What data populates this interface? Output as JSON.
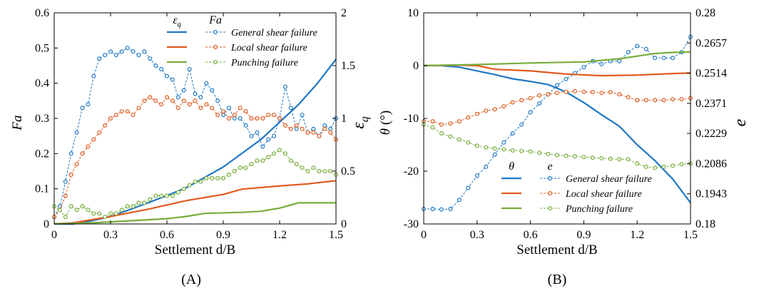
{
  "chart_data": [
    {
      "panel_label": "(A)",
      "type": "line",
      "xlabel": "Settlement d/B",
      "ylabel_left": "Fa",
      "ylabel_right": "ε_q",
      "xlim": [
        0,
        1.5
      ],
      "ylim_left": [
        0,
        0.6
      ],
      "ylim_right": [
        0,
        2
      ],
      "xticks": [
        "0",
        "0.3",
        "0.6",
        "0.9",
        "1.2",
        "1.5"
      ],
      "yticks_left": [
        "0",
        "0.1",
        "0.2",
        "0.3",
        "0.4",
        "0.5",
        "0.6"
      ],
      "yticks_right": [
        "0",
        "0.5",
        "1",
        "1.5",
        "2"
      ],
      "legend_headers": [
        "ε_q",
        "Fa"
      ],
      "legend_position": "top-right",
      "series": [
        {
          "name": "General shear failure",
          "color": "#1f77c4",
          "axis_solid": "right",
          "axis_marker": "left",
          "solid": {
            "x": [
              0,
              0.1,
              0.2,
              0.3,
              0.5,
              0.7,
              0.9,
              1.1,
              1.3,
              1.4,
              1.5
            ],
            "y": [
              0,
              0,
              0.03,
              0.07,
              0.2,
              0.34,
              0.54,
              0.8,
              1.13,
              1.33,
              1.56
            ]
          },
          "markers": {
            "x": [
              0,
              0.03,
              0.06,
              0.09,
              0.12,
              0.15,
              0.18,
              0.21,
              0.24,
              0.27,
              0.3,
              0.33,
              0.36,
              0.39,
              0.42,
              0.45,
              0.48,
              0.51,
              0.54,
              0.57,
              0.6,
              0.63,
              0.66,
              0.69,
              0.72,
              0.75,
              0.78,
              0.81,
              0.84,
              0.87,
              0.9,
              0.93,
              0.96,
              0.99,
              1.02,
              1.05,
              1.08,
              1.11,
              1.14,
              1.17,
              1.2,
              1.23,
              1.26,
              1.29,
              1.32,
              1.35,
              1.38,
              1.41,
              1.44,
              1.47,
              1.5
            ],
            "y": [
              0.02,
              0.05,
              0.12,
              0.2,
              0.26,
              0.33,
              0.34,
              0.42,
              0.47,
              0.48,
              0.49,
              0.48,
              0.49,
              0.5,
              0.49,
              0.48,
              0.49,
              0.47,
              0.45,
              0.44,
              0.42,
              0.41,
              0.36,
              0.38,
              0.44,
              0.37,
              0.36,
              0.4,
              0.38,
              0.35,
              0.31,
              0.33,
              0.3,
              0.3,
              0.28,
              0.25,
              0.26,
              0.22,
              0.24,
              0.25,
              0.3,
              0.39,
              0.33,
              0.27,
              0.31,
              0.26,
              0.27,
              0.25,
              0.28,
              0.27,
              0.3
            ]
          }
        },
        {
          "name": "Local shear failure",
          "color": "#e05a1e",
          "axis_solid": "right",
          "axis_marker": "left",
          "solid": {
            "x": [
              0,
              0.1,
              0.3,
              0.5,
              0.7,
              0.9,
              1.0,
              1.2,
              1.35,
              1.5
            ],
            "y": [
              0,
              0.01,
              0.07,
              0.14,
              0.22,
              0.28,
              0.33,
              0.36,
              0.38,
              0.41
            ]
          },
          "markers": {
            "x": [
              0,
              0.03,
              0.06,
              0.09,
              0.12,
              0.15,
              0.18,
              0.21,
              0.24,
              0.27,
              0.3,
              0.33,
              0.36,
              0.39,
              0.42,
              0.45,
              0.48,
              0.51,
              0.54,
              0.57,
              0.6,
              0.63,
              0.66,
              0.69,
              0.72,
              0.75,
              0.78,
              0.81,
              0.84,
              0.87,
              0.9,
              0.93,
              0.96,
              0.99,
              1.02,
              1.05,
              1.08,
              1.11,
              1.14,
              1.17,
              1.2,
              1.23,
              1.26,
              1.29,
              1.32,
              1.35,
              1.38,
              1.41,
              1.44,
              1.47,
              1.5
            ],
            "y": [
              0.02,
              0.04,
              0.08,
              0.14,
              0.17,
              0.2,
              0.22,
              0.24,
              0.26,
              0.28,
              0.3,
              0.31,
              0.32,
              0.32,
              0.31,
              0.33,
              0.35,
              0.36,
              0.35,
              0.34,
              0.36,
              0.35,
              0.33,
              0.35,
              0.34,
              0.35,
              0.33,
              0.34,
              0.33,
              0.31,
              0.32,
              0.3,
              0.31,
              0.33,
              0.32,
              0.3,
              0.3,
              0.3,
              0.31,
              0.31,
              0.3,
              0.28,
              0.27,
              0.28,
              0.27,
              0.26,
              0.26,
              0.25,
              0.27,
              0.26,
              0.24
            ]
          }
        },
        {
          "name": "Punching failure",
          "color": "#77ad3a",
          "axis_solid": "right",
          "axis_marker": "left",
          "solid": {
            "x": [
              0,
              0.2,
              0.4,
              0.6,
              0.7,
              0.8,
              1.0,
              1.1,
              1.2,
              1.3,
              1.4,
              1.5
            ],
            "y": [
              0,
              0.01,
              0.03,
              0.05,
              0.07,
              0.1,
              0.11,
              0.12,
              0.15,
              0.2,
              0.2,
              0.2
            ]
          },
          "markers": {
            "x": [
              0,
              0.03,
              0.06,
              0.09,
              0.12,
              0.15,
              0.18,
              0.21,
              0.24,
              0.27,
              0.3,
              0.33,
              0.36,
              0.39,
              0.42,
              0.45,
              0.48,
              0.51,
              0.54,
              0.57,
              0.6,
              0.63,
              0.66,
              0.69,
              0.72,
              0.75,
              0.78,
              0.81,
              0.84,
              0.87,
              0.9,
              0.93,
              0.96,
              0.99,
              1.02,
              1.05,
              1.08,
              1.11,
              1.14,
              1.17,
              1.2,
              1.23,
              1.26,
              1.29,
              1.32,
              1.35,
              1.38,
              1.41,
              1.44,
              1.47,
              1.5
            ],
            "y": [
              0.05,
              0.04,
              0.02,
              0.05,
              0.04,
              0.05,
              0.04,
              0.03,
              0.03,
              0.02,
              0.03,
              0.03,
              0.04,
              0.05,
              0.05,
              0.06,
              0.06,
              0.07,
              0.08,
              0.08,
              0.08,
              0.08,
              0.09,
              0.1,
              0.11,
              0.12,
              0.12,
              0.13,
              0.13,
              0.13,
              0.13,
              0.14,
              0.15,
              0.16,
              0.16,
              0.17,
              0.18,
              0.18,
              0.19,
              0.2,
              0.21,
              0.2,
              0.18,
              0.17,
              0.16,
              0.15,
              0.16,
              0.15,
              0.15,
              0.15,
              0.14
            ]
          }
        }
      ]
    },
    {
      "panel_label": "(B)",
      "type": "line",
      "xlabel": "Settlement d/B",
      "ylabel_left": "θ (°)",
      "ylabel_right": "e",
      "xlim": [
        0,
        1.5
      ],
      "ylim_left": [
        -30,
        10
      ],
      "ylim_right": [
        0.18,
        0.28
      ],
      "xticks": [
        "0",
        "0.3",
        "0.6",
        "0.9",
        "1.2",
        "1.5"
      ],
      "yticks_left": [
        "-30",
        "-20",
        "-10",
        "0",
        "10"
      ],
      "yticks_right": [
        "0.18",
        "0.1943",
        "0.2086",
        "0.2229",
        "0.2371",
        "0.2514",
        "0.2657",
        "0.28"
      ],
      "legend_headers": [
        "θ",
        "e"
      ],
      "legend_position": "bottom-right",
      "series": [
        {
          "name": "General shear failure",
          "color": "#1f77c4",
          "axis_solid": "left",
          "axis_marker": "right",
          "solid": {
            "x": [
              0,
              0.1,
              0.2,
              0.3,
              0.4,
              0.5,
              0.6,
              0.7,
              0.8,
              0.9,
              1.0,
              1.1,
              1.2,
              1.3,
              1.4,
              1.5
            ],
            "y": [
              0,
              0,
              -0.3,
              -1,
              -1.7,
              -2.5,
              -3,
              -3.6,
              -5,
              -7,
              -9.3,
              -11.5,
              -15,
              -18,
              -21.5,
              -26
            ]
          },
          "markers": {
            "x": [
              0,
              0.05,
              0.1,
              0.15,
              0.2,
              0.25,
              0.3,
              0.35,
              0.4,
              0.45,
              0.5,
              0.55,
              0.6,
              0.65,
              0.7,
              0.75,
              0.8,
              0.85,
              0.9,
              0.95,
              1.0,
              1.05,
              1.1,
              1.15,
              1.2,
              1.25,
              1.3,
              1.35,
              1.4,
              1.45,
              1.5
            ],
            "y": [
              0.1871,
              0.1871,
              0.1869,
              0.1871,
              0.1914,
              0.1971,
              0.2029,
              0.2071,
              0.2129,
              0.2186,
              0.2229,
              0.2271,
              0.2329,
              0.2371,
              0.2414,
              0.2457,
              0.2486,
              0.2514,
              0.2543,
              0.2571,
              0.2557,
              0.2571,
              0.2571,
              0.2614,
              0.2643,
              0.2629,
              0.2586,
              0.2586,
              0.2586,
              0.2614,
              0.2686
            ]
          }
        },
        {
          "name": "Local shear failure",
          "color": "#e05a1e",
          "axis_solid": "left",
          "axis_marker": "right",
          "solid": {
            "x": [
              0,
              0.2,
              0.3,
              0.4,
              0.6,
              0.8,
              1.0,
              1.2,
              1.4,
              1.5
            ],
            "y": [
              0,
              0.1,
              0,
              -0.7,
              -1,
              -1.6,
              -1.9,
              -1.8,
              -1.5,
              -1.4
            ]
          },
          "markers": {
            "x": [
              0,
              0.05,
              0.1,
              0.15,
              0.2,
              0.25,
              0.3,
              0.35,
              0.4,
              0.45,
              0.5,
              0.55,
              0.6,
              0.65,
              0.7,
              0.75,
              0.8,
              0.85,
              0.9,
              0.95,
              1.0,
              1.05,
              1.1,
              1.15,
              1.2,
              1.25,
              1.3,
              1.35,
              1.4,
              1.45,
              1.5
            ],
            "y": [
              0.2286,
              0.2286,
              0.2271,
              0.2276,
              0.2286,
              0.2304,
              0.2321,
              0.2336,
              0.2343,
              0.2357,
              0.2376,
              0.2386,
              0.2396,
              0.2409,
              0.2414,
              0.2421,
              0.2426,
              0.2429,
              0.2426,
              0.2424,
              0.2421,
              0.2424,
              0.2414,
              0.24,
              0.2386,
              0.2386,
              0.2386,
              0.2386,
              0.2391,
              0.2391,
              0.2396
            ]
          }
        },
        {
          "name": "Punching failure",
          "color": "#77ad3a",
          "axis_solid": "left",
          "axis_marker": "right",
          "solid": {
            "x": [
              0,
              0.3,
              0.6,
              0.9,
              1.0,
              1.1,
              1.2,
              1.3,
              1.4,
              1.5
            ],
            "y": [
              0,
              0.2,
              0.5,
              0.7,
              1,
              1.3,
              1.8,
              2.3,
              2.5,
              2.6
            ]
          },
          "markers": {
            "x": [
              0,
              0.05,
              0.1,
              0.15,
              0.2,
              0.25,
              0.3,
              0.35,
              0.4,
              0.45,
              0.5,
              0.55,
              0.6,
              0.65,
              0.7,
              0.75,
              0.8,
              0.85,
              0.9,
              0.95,
              1.0,
              1.05,
              1.1,
              1.15,
              1.2,
              1.25,
              1.3,
              1.35,
              1.4,
              1.45,
              1.5
            ],
            "y": [
              0.2271,
              0.2257,
              0.2229,
              0.2214,
              0.22,
              0.2186,
              0.2171,
              0.2163,
              0.2157,
              0.2154,
              0.2148,
              0.2146,
              0.2143,
              0.2137,
              0.2131,
              0.2126,
              0.2123,
              0.212,
              0.2117,
              0.2114,
              0.2111,
              0.2109,
              0.2106,
              0.2106,
              0.2086,
              0.2071,
              0.2066,
              0.2071,
              0.2076,
              0.2083,
              0.2086
            ]
          }
        }
      ]
    }
  ]
}
